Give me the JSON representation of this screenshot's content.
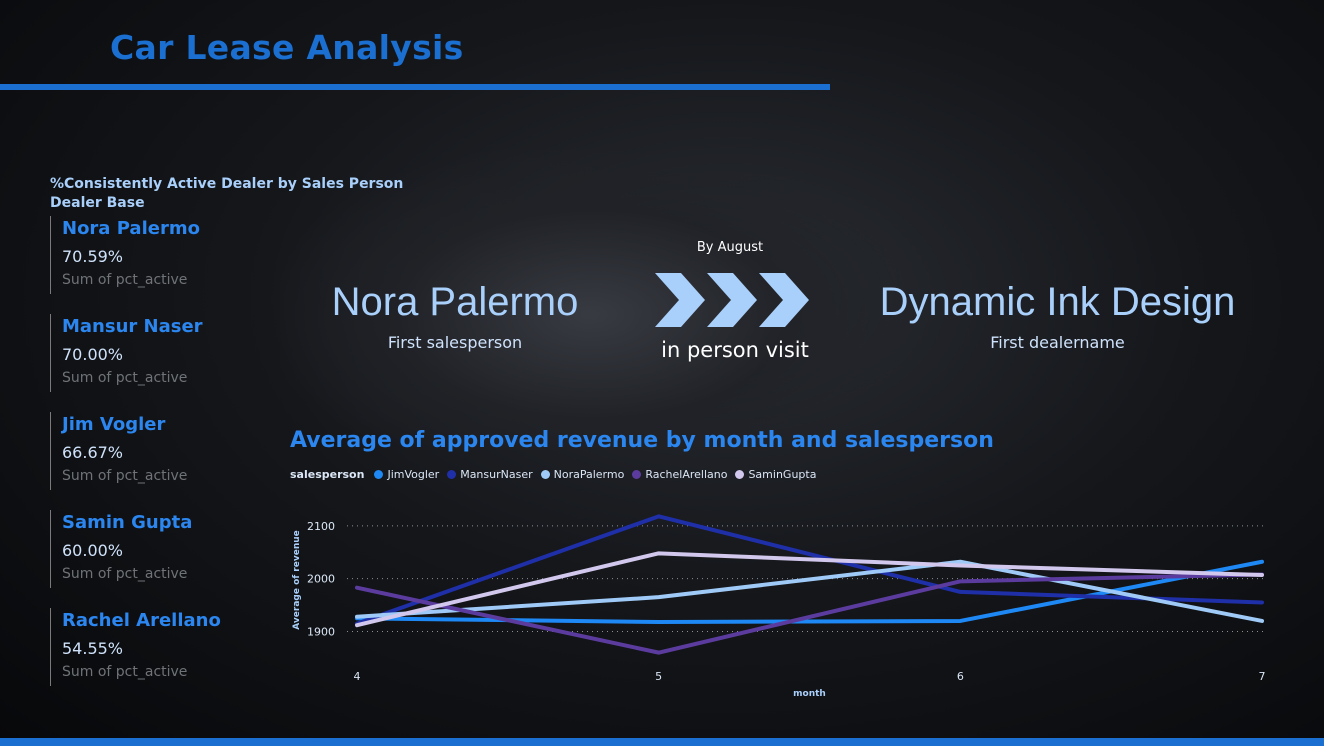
{
  "page": {
    "title": "Car Lease Analysis"
  },
  "kpi": {
    "title_line1": "%Consistently Active Dealer by Sales Person",
    "title_line2": "Dealer Base",
    "cards": [
      {
        "name": "Nora Palermo",
        "value": "70.59%",
        "caption": "Sum of pct_active"
      },
      {
        "name": "Mansur Naser",
        "value": "70.00%",
        "caption": "Sum of pct_active"
      },
      {
        "name": "Jim Vogler",
        "value": "66.67%",
        "caption": "Sum of pct_active"
      },
      {
        "name": "Samin Gupta",
        "value": "60.00%",
        "caption": "Sum of pct_active"
      },
      {
        "name": "Rachel Arellano",
        "value": "54.55%",
        "caption": "Sum of pct_active"
      }
    ]
  },
  "hero": {
    "salesperson": "Nora Palermo",
    "salesperson_caption": "First salesperson",
    "by_label": "By August",
    "visit_label": "in person visit",
    "dealer": "Dynamic Ink Design",
    "dealer_caption": "First dealername",
    "chevron_color": "#a9cffb"
  },
  "chart_data": {
    "type": "line",
    "title": "Average of approved revenue by month and salesperson",
    "legend_title": "salesperson",
    "xlabel": "month",
    "ylabel": "Average of revenue",
    "x": [
      4,
      5,
      6,
      7
    ],
    "yticks": [
      1900,
      2000,
      2100
    ],
    "ylim": [
      1865,
      2130
    ],
    "grid": true,
    "legend_position": "top-left",
    "series": [
      {
        "name": "JimVogler",
        "color": "#1e88f5",
        "values": [
          1925,
          1918,
          1920,
          2032
        ]
      },
      {
        "name": "MansurNaser",
        "color": "#1f2fa8",
        "values": [
          1915,
          2118,
          1975,
          1955
        ]
      },
      {
        "name": "NoraPalermo",
        "color": "#9fcaf7",
        "values": [
          1928,
          1965,
          2032,
          1920
        ]
      },
      {
        "name": "RachelArellano",
        "color": "#5b3c9e",
        "values": [
          1983,
          1860,
          1995,
          2008
        ]
      },
      {
        "name": "SaminGupta",
        "color": "#d2c7ec",
        "values": [
          1912,
          2048,
          2025,
          2007
        ]
      }
    ]
  }
}
